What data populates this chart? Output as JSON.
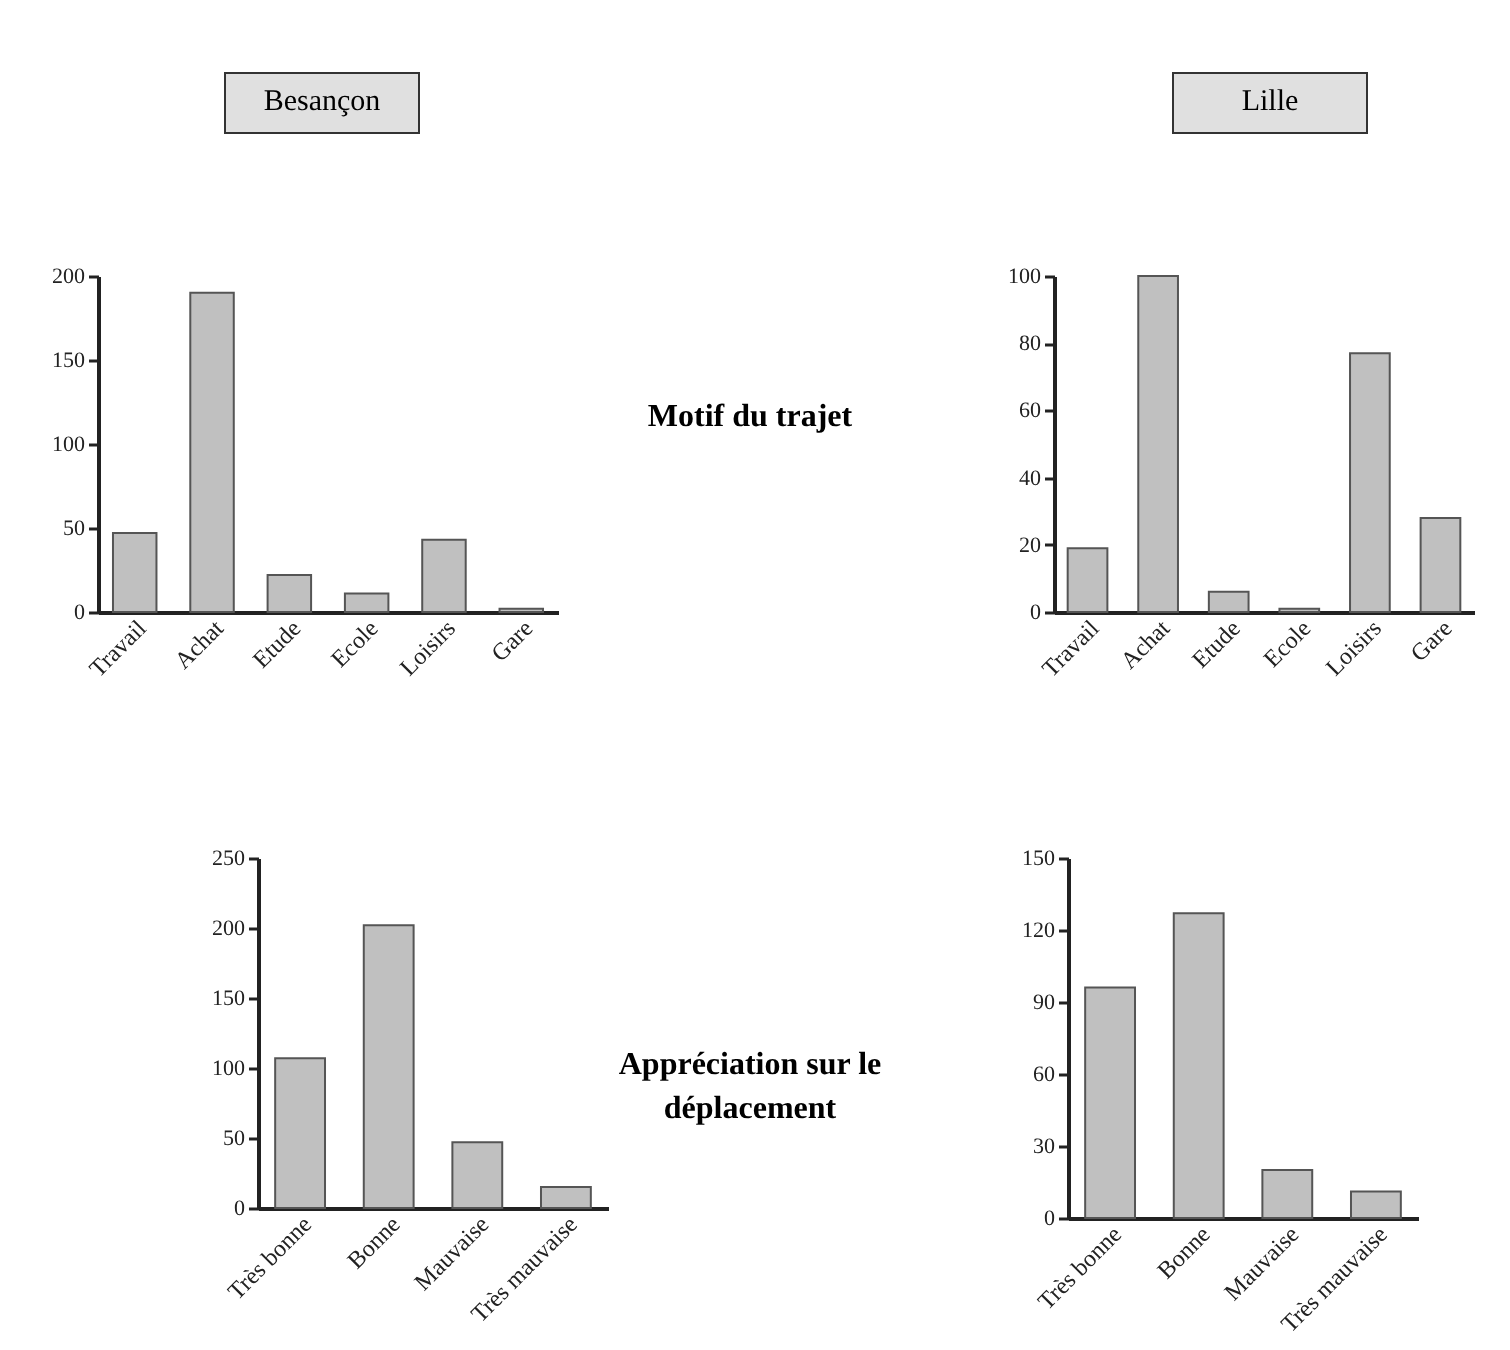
{
  "chart_data": [
    {
      "type": "bar",
      "title": "Besançon",
      "annotations": [
        "Motif du trajet"
      ],
      "categories": [
        "Travail",
        "Achat",
        "Etude",
        "Ecole",
        "Loisirs",
        "Gare"
      ],
      "values": [
        47,
        190,
        22,
        11,
        43,
        2
      ],
      "color": "#c0c0c0",
      "ylim": [
        0,
        200
      ],
      "yticks": [
        0,
        50,
        100,
        150,
        200
      ],
      "grid": false
    },
    {
      "type": "bar",
      "title": "Lille",
      "categories": [
        "Travail",
        "Achat",
        "Etude",
        "Ecole",
        "Loisirs",
        "Gare"
      ],
      "values": [
        19,
        100,
        6,
        1,
        77,
        28
      ],
      "color": "#c0c0c0",
      "ylim": [
        0,
        100
      ],
      "yticks": [
        0,
        20,
        40,
        60,
        80,
        100
      ],
      "grid": false
    },
    {
      "type": "bar",
      "annotations": [
        "Appréciation sur le déplacement"
      ],
      "categories": [
        "Très bonne",
        "Bonne",
        "Mauvaise",
        "Très mauvaise"
      ],
      "values": [
        107,
        202,
        47,
        15
      ],
      "color": "#c0c0c0",
      "ylim": [
        0,
        250
      ],
      "yticks": [
        0,
        50,
        100,
        150,
        200,
        250
      ],
      "grid": false
    },
    {
      "type": "bar",
      "categories": [
        "Très bonne",
        "Bonne",
        "Mauvaise",
        "Très mauvaise"
      ],
      "values": [
        96,
        127,
        20,
        11
      ],
      "color": "#c0c0c0",
      "ylim": [
        0,
        150
      ],
      "yticks": [
        0,
        30,
        60,
        90,
        120,
        150
      ],
      "grid": false
    }
  ]
}
